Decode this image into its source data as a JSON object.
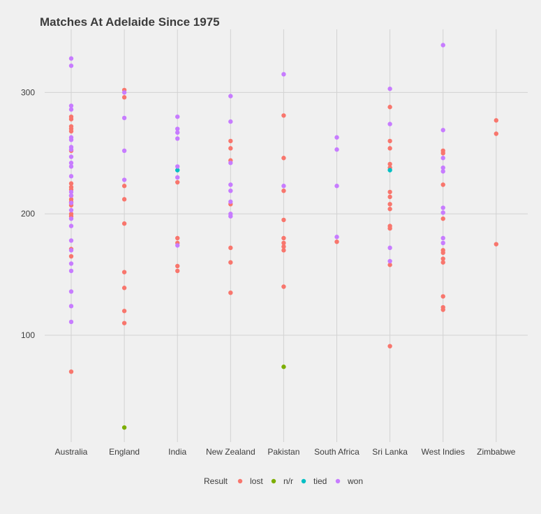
{
  "chart_data": {
    "type": "scatter",
    "title": "Matches At Adelaide Since 1975",
    "xlabel": "",
    "ylabel": "",
    "categories": [
      "Australia",
      "England",
      "India",
      "New Zealand",
      "Pakistan",
      "South Africa",
      "Sri Lanka",
      "West Indies",
      "Zimbabwe"
    ],
    "ylim": [
      12,
      352
    ],
    "y_ticks": [
      100,
      200,
      300
    ],
    "grid": true,
    "legend": {
      "title": "Result",
      "position": "bottom"
    },
    "series": [
      {
        "name": "lost",
        "color": "#F8766D",
        "points": [
          [
            "Australia",
            280
          ],
          [
            "Australia",
            278
          ],
          [
            "Australia",
            272
          ],
          [
            "Australia",
            270
          ],
          [
            "Australia",
            268
          ],
          [
            "Australia",
            252
          ],
          [
            "Australia",
            225
          ],
          [
            "Australia",
            222
          ],
          [
            "Australia",
            220
          ],
          [
            "Australia",
            215
          ],
          [
            "Australia",
            212
          ],
          [
            "Australia",
            210
          ],
          [
            "Australia",
            207
          ],
          [
            "Australia",
            200
          ],
          [
            "Australia",
            198
          ],
          [
            "Australia",
            171
          ],
          [
            "Australia",
            165
          ],
          [
            "Australia",
            70
          ],
          [
            "England",
            302
          ],
          [
            "England",
            296
          ],
          [
            "England",
            223
          ],
          [
            "England",
            212
          ],
          [
            "England",
            192
          ],
          [
            "England",
            152
          ],
          [
            "England",
            139
          ],
          [
            "England",
            120
          ],
          [
            "England",
            110
          ],
          [
            "India",
            226
          ],
          [
            "India",
            180
          ],
          [
            "India",
            176
          ],
          [
            "India",
            157
          ],
          [
            "India",
            153
          ],
          [
            "New Zealand",
            260
          ],
          [
            "New Zealand",
            254
          ],
          [
            "New Zealand",
            244
          ],
          [
            "New Zealand",
            208
          ],
          [
            "New Zealand",
            172
          ],
          [
            "New Zealand",
            160
          ],
          [
            "New Zealand",
            135
          ],
          [
            "Pakistan",
            281
          ],
          [
            "Pakistan",
            246
          ],
          [
            "Pakistan",
            219
          ],
          [
            "Pakistan",
            195
          ],
          [
            "Pakistan",
            180
          ],
          [
            "Pakistan",
            176
          ],
          [
            "Pakistan",
            173
          ],
          [
            "Pakistan",
            170
          ],
          [
            "Pakistan",
            140
          ],
          [
            "South Africa",
            177
          ],
          [
            "Sri Lanka",
            288
          ],
          [
            "Sri Lanka",
            260
          ],
          [
            "Sri Lanka",
            254
          ],
          [
            "Sri Lanka",
            241
          ],
          [
            "Sri Lanka",
            238
          ],
          [
            "Sri Lanka",
            218
          ],
          [
            "Sri Lanka",
            214
          ],
          [
            "Sri Lanka",
            208
          ],
          [
            "Sri Lanka",
            204
          ],
          [
            "Sri Lanka",
            190
          ],
          [
            "Sri Lanka",
            188
          ],
          [
            "Sri Lanka",
            158
          ],
          [
            "Sri Lanka",
            91
          ],
          [
            "West Indies",
            252
          ],
          [
            "West Indies",
            250
          ],
          [
            "West Indies",
            224
          ],
          [
            "West Indies",
            196
          ],
          [
            "West Indies",
            170
          ],
          [
            "West Indies",
            168
          ],
          [
            "West Indies",
            163
          ],
          [
            "West Indies",
            160
          ],
          [
            "West Indies",
            132
          ],
          [
            "West Indies",
            123
          ],
          [
            "West Indies",
            121
          ],
          [
            "Zimbabwe",
            277
          ],
          [
            "Zimbabwe",
            266
          ],
          [
            "Zimbabwe",
            175
          ]
        ]
      },
      {
        "name": "n/r",
        "color": "#7CAE00",
        "points": [
          [
            "England",
            24
          ],
          [
            "Pakistan",
            74
          ]
        ]
      },
      {
        "name": "tied",
        "color": "#00BFC4",
        "points": [
          [
            "India",
            236
          ],
          [
            "Sri Lanka",
            236
          ]
        ]
      },
      {
        "name": "won",
        "color": "#C77CFF",
        "points": [
          [
            "Australia",
            328
          ],
          [
            "Australia",
            322
          ],
          [
            "Australia",
            289
          ],
          [
            "Australia",
            286
          ],
          [
            "Australia",
            263
          ],
          [
            "Australia",
            261
          ],
          [
            "Australia",
            255
          ],
          [
            "Australia",
            253
          ],
          [
            "Australia",
            247
          ],
          [
            "Australia",
            242
          ],
          [
            "Australia",
            239
          ],
          [
            "Australia",
            231
          ],
          [
            "Australia",
            218
          ],
          [
            "Australia",
            215
          ],
          [
            "Australia",
            209
          ],
          [
            "Australia",
            203
          ],
          [
            "Australia",
            196
          ],
          [
            "Australia",
            190
          ],
          [
            "Australia",
            178
          ],
          [
            "Australia",
            170
          ],
          [
            "Australia",
            159
          ],
          [
            "Australia",
            153
          ],
          [
            "Australia",
            136
          ],
          [
            "Australia",
            124
          ],
          [
            "Australia",
            111
          ],
          [
            "England",
            300
          ],
          [
            "England",
            279
          ],
          [
            "England",
            252
          ],
          [
            "England",
            228
          ],
          [
            "India",
            280
          ],
          [
            "India",
            270
          ],
          [
            "India",
            267
          ],
          [
            "India",
            262
          ],
          [
            "India",
            239
          ],
          [
            "India",
            230
          ],
          [
            "India",
            174
          ],
          [
            "New Zealand",
            297
          ],
          [
            "New Zealand",
            276
          ],
          [
            "New Zealand",
            242
          ],
          [
            "New Zealand",
            224
          ],
          [
            "New Zealand",
            219
          ],
          [
            "New Zealand",
            210
          ],
          [
            "New Zealand",
            200
          ],
          [
            "New Zealand",
            198
          ],
          [
            "Pakistan",
            315
          ],
          [
            "Pakistan",
            223
          ],
          [
            "South Africa",
            263
          ],
          [
            "South Africa",
            253
          ],
          [
            "South Africa",
            223
          ],
          [
            "South Africa",
            181
          ],
          [
            "Sri Lanka",
            303
          ],
          [
            "Sri Lanka",
            274
          ],
          [
            "Sri Lanka",
            172
          ],
          [
            "Sri Lanka",
            161
          ],
          [
            "West Indies",
            339
          ],
          [
            "West Indies",
            269
          ],
          [
            "West Indies",
            246
          ],
          [
            "West Indies",
            238
          ],
          [
            "West Indies",
            235
          ],
          [
            "West Indies",
            205
          ],
          [
            "West Indies",
            201
          ],
          [
            "West Indies",
            180
          ],
          [
            "West Indies",
            176
          ]
        ]
      }
    ]
  }
}
